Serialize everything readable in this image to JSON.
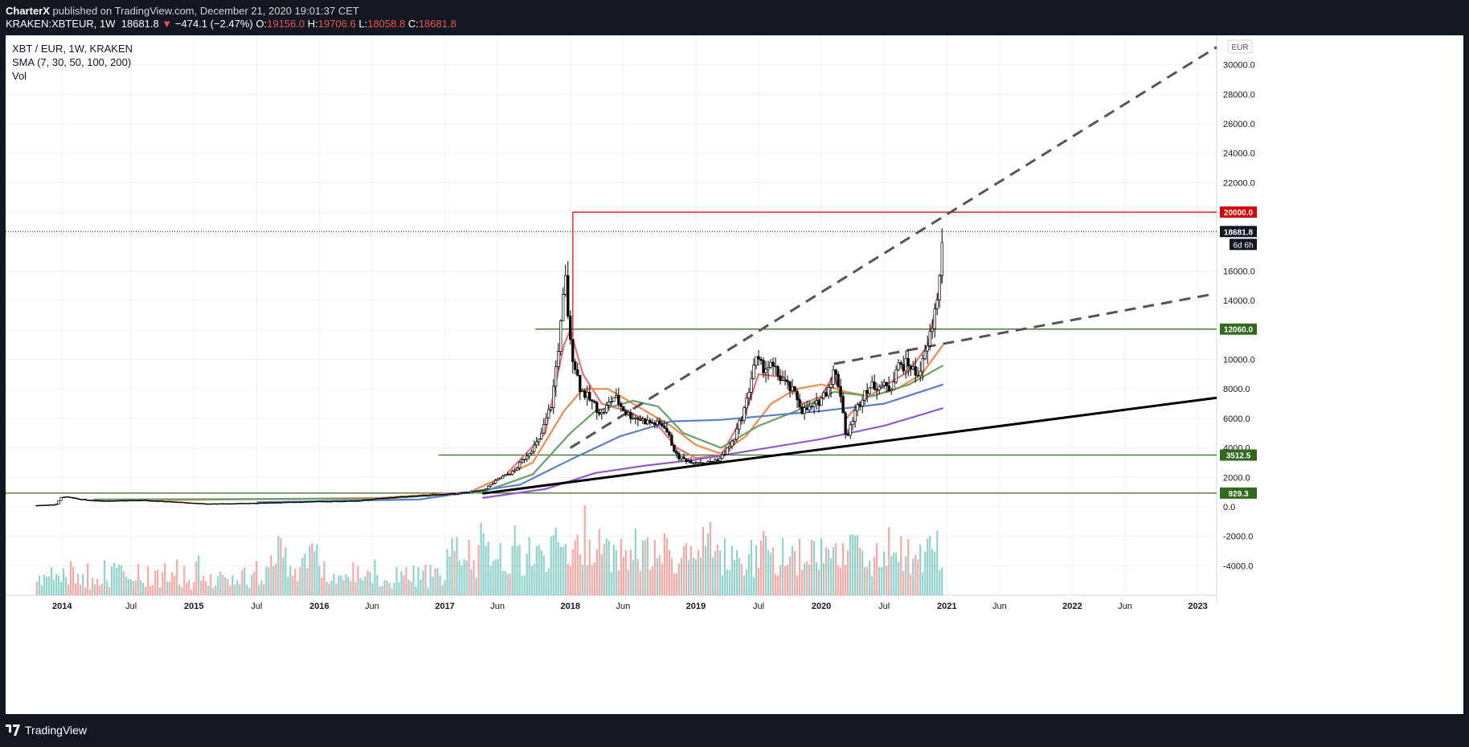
{
  "header": {
    "publisher": "CharterX",
    "published_text": " published on TradingView.com, December 21, 2020 19:01:37 CET",
    "symbol": "KRAKEN:XBTEUR, 1W",
    "last": "18681.8",
    "change": "−474.1 (−2.47%)",
    "o_label": "O:",
    "o_value": "19156.0",
    "h_label": "H:",
    "h_value": "19706.6",
    "l_label": "L:",
    "l_value": "18058.8",
    "c_label": "C:",
    "c_value": "18681.8"
  },
  "legend": {
    "pair": "XBT / EUR, 1W, KRAKEN",
    "sma": "SMA (7, 30, 50, 100, 200)",
    "vol": "Vol"
  },
  "footer": {
    "brand": "TradingView"
  },
  "colors": {
    "bull": "#26a69a",
    "bear": "#ef5350",
    "sma7": "#e57373",
    "sma30": "#f08a4b",
    "sma50": "#6a9f6a",
    "sma100": "#5b7fc7",
    "sma200": "#8e5cc7",
    "resistance": "#d50000",
    "support": "#33691e",
    "trend": "#000000",
    "dashed": "#555555"
  },
  "chart_data": {
    "type": "candlestick",
    "title": "XBT / EUR, 1W, KRAKEN",
    "currency": "EUR",
    "y_axis": {
      "range": [
        -6000,
        32000
      ],
      "ticks": [
        30000,
        28000,
        26000,
        24000,
        22000,
        20000,
        16000,
        14000,
        12000,
        10000,
        8000,
        6000,
        4000,
        2000,
        0,
        -2000,
        -4000
      ]
    },
    "x_axis": {
      "range": [
        2013.5,
        2023.15
      ],
      "ticks": [
        {
          "label": "2014",
          "x": 2013.95
        },
        {
          "label": "Jul",
          "x": 2014.5
        },
        {
          "label": "2015",
          "x": 2015.0
        },
        {
          "label": "Jul",
          "x": 2015.5
        },
        {
          "label": "2016",
          "x": 2016.0
        },
        {
          "label": "Jun",
          "x": 2016.42
        },
        {
          "label": "2017",
          "x": 2017.0
        },
        {
          "label": "Jun",
          "x": 2017.42
        },
        {
          "label": "2018",
          "x": 2018.0
        },
        {
          "label": "Jun",
          "x": 2018.42
        },
        {
          "label": "2019",
          "x": 2019.0
        },
        {
          "label": "Jul",
          "x": 2019.5
        },
        {
          "label": "2020",
          "x": 2020.0
        },
        {
          "label": "Jul",
          "x": 2020.5
        },
        {
          "label": "2021",
          "x": 2021.0
        },
        {
          "label": "Jun",
          "x": 2021.42
        },
        {
          "label": "2022",
          "x": 2022.0
        },
        {
          "label": "Jun",
          "x": 2022.42
        },
        {
          "label": "2023",
          "x": 2023.0
        }
      ]
    },
    "price_path": [
      [
        2013.75,
        100
      ],
      [
        2013.9,
        150
      ],
      [
        2013.95,
        700
      ],
      [
        2014.1,
        500
      ],
      [
        2014.3,
        400
      ],
      [
        2014.6,
        450
      ],
      [
        2014.9,
        300
      ],
      [
        2015.1,
        200
      ],
      [
        2015.5,
        250
      ],
      [
        2015.9,
        350
      ],
      [
        2016.3,
        400
      ],
      [
        2016.5,
        600
      ],
      [
        2016.9,
        800
      ],
      [
        2017.1,
        900
      ],
      [
        2017.3,
        1100
      ],
      [
        2017.45,
        2000
      ],
      [
        2017.55,
        2400
      ],
      [
        2017.65,
        3500
      ],
      [
        2017.75,
        4500
      ],
      [
        2017.85,
        7000
      ],
      [
        2017.92,
        12000
      ],
      [
        2017.96,
        15500
      ],
      [
        2018.0,
        11000
      ],
      [
        2018.08,
        8000
      ],
      [
        2018.18,
        7000
      ],
      [
        2018.25,
        6300
      ],
      [
        2018.35,
        7500
      ],
      [
        2018.45,
        6300
      ],
      [
        2018.6,
        5800
      ],
      [
        2018.75,
        5500
      ],
      [
        2018.85,
        3400
      ],
      [
        2018.95,
        3100
      ],
      [
        2019.1,
        3000
      ],
      [
        2019.2,
        3300
      ],
      [
        2019.3,
        4500
      ],
      [
        2019.4,
        7000
      ],
      [
        2019.47,
        10000
      ],
      [
        2019.52,
        9500
      ],
      [
        2019.6,
        9500
      ],
      [
        2019.7,
        8500
      ],
      [
        2019.8,
        7500
      ],
      [
        2019.85,
        6500
      ],
      [
        2019.95,
        6800
      ],
      [
        2020.05,
        8000
      ],
      [
        2020.1,
        9200
      ],
      [
        2020.15,
        8000
      ],
      [
        2020.2,
        4500
      ],
      [
        2020.25,
        6000
      ],
      [
        2020.35,
        8000
      ],
      [
        2020.45,
        8300
      ],
      [
        2020.55,
        8000
      ],
      [
        2020.6,
        9500
      ],
      [
        2020.7,
        9700
      ],
      [
        2020.75,
        9000
      ],
      [
        2020.8,
        9500
      ],
      [
        2020.85,
        11000
      ],
      [
        2020.9,
        13000
      ],
      [
        2020.95,
        16000
      ],
      [
        2020.97,
        18681.8
      ]
    ],
    "sma": [
      {
        "name": "SMA 7",
        "color": "#e57373",
        "points": [
          [
            2017.5,
            2300
          ],
          [
            2017.8,
            5000
          ],
          [
            2017.95,
            11000
          ],
          [
            2018.0,
            12000
          ],
          [
            2018.1,
            9000
          ],
          [
            2018.25,
            7000
          ],
          [
            2018.45,
            6500
          ],
          [
            2018.7,
            5500
          ],
          [
            2018.85,
            4000
          ],
          [
            2019.0,
            3300
          ],
          [
            2019.2,
            3500
          ],
          [
            2019.4,
            6500
          ],
          [
            2019.5,
            9000
          ],
          [
            2019.7,
            8800
          ],
          [
            2019.85,
            7000
          ],
          [
            2020.0,
            7500
          ],
          [
            2020.1,
            9000
          ],
          [
            2020.2,
            6000
          ],
          [
            2020.3,
            7000
          ],
          [
            2020.5,
            8200
          ],
          [
            2020.7,
            9200
          ],
          [
            2020.85,
            11000
          ],
          [
            2020.97,
            16000
          ]
        ]
      },
      {
        "name": "SMA 30",
        "color": "#f08a4b",
        "points": [
          [
            2014.2,
            400
          ],
          [
            2016.5,
            600
          ],
          [
            2017.2,
            1000
          ],
          [
            2017.7,
            3000
          ],
          [
            2017.95,
            6500
          ],
          [
            2018.1,
            8000
          ],
          [
            2018.3,
            8000
          ],
          [
            2018.5,
            7000
          ],
          [
            2018.8,
            5500
          ],
          [
            2019.0,
            4200
          ],
          [
            2019.2,
            3600
          ],
          [
            2019.4,
            4800
          ],
          [
            2019.6,
            7000
          ],
          [
            2019.8,
            8000
          ],
          [
            2020.0,
            8300
          ],
          [
            2020.2,
            7800
          ],
          [
            2020.4,
            7500
          ],
          [
            2020.6,
            8000
          ],
          [
            2020.8,
            9000
          ],
          [
            2020.97,
            11000
          ]
        ]
      },
      {
        "name": "SMA 50",
        "color": "#6a9f6a",
        "points": [
          [
            2014.2,
            500
          ],
          [
            2016.5,
            550
          ],
          [
            2017.3,
            1000
          ],
          [
            2017.7,
            2200
          ],
          [
            2018.0,
            5000
          ],
          [
            2018.2,
            6500
          ],
          [
            2018.5,
            7200
          ],
          [
            2018.7,
            6800
          ],
          [
            2018.9,
            5000
          ],
          [
            2019.2,
            4000
          ],
          [
            2019.5,
            5500
          ],
          [
            2019.8,
            6500
          ],
          [
            2020.1,
            7800
          ],
          [
            2020.4,
            7500
          ],
          [
            2020.7,
            8300
          ],
          [
            2020.97,
            9600
          ]
        ]
      },
      {
        "name": "SMA 100",
        "color": "#5b7fc7",
        "points": [
          [
            2015.5,
            300
          ],
          [
            2016.8,
            500
          ],
          [
            2017.6,
            1500
          ],
          [
            2018.0,
            3200
          ],
          [
            2018.4,
            4800
          ],
          [
            2018.8,
            5800
          ],
          [
            2019.2,
            5900
          ],
          [
            2019.6,
            6200
          ],
          [
            2020.0,
            6500
          ],
          [
            2020.5,
            7000
          ],
          [
            2020.97,
            8300
          ]
        ]
      },
      {
        "name": "SMA 200",
        "color": "#8e5cc7",
        "points": [
          [
            2017.3,
            600
          ],
          [
            2017.8,
            1200
          ],
          [
            2018.2,
            2300
          ],
          [
            2018.6,
            2800
          ],
          [
            2019.0,
            3200
          ],
          [
            2019.5,
            3900
          ],
          [
            2020.0,
            4600
          ],
          [
            2020.5,
            5500
          ],
          [
            2020.97,
            6700
          ]
        ]
      }
    ],
    "horizontal_levels": [
      {
        "label": "20000.0",
        "value": 20000,
        "color": "#d50000",
        "from": 2018.02
      },
      {
        "label": "12060.0",
        "value": 12060,
        "color": "#33691e",
        "from": 2017.72
      },
      {
        "label": "3512.5",
        "value": 3512.5,
        "color": "#33691e",
        "from": 2016.95
      },
      {
        "label": "929.3",
        "value": 929.3,
        "color": "#33691e",
        "from": 2013.5
      }
    ],
    "current_price": {
      "label": "18681.8",
      "value": 18681.8,
      "countdown": "6d 6h"
    },
    "trendlines": [
      {
        "style": "solid",
        "from": [
          2017.3,
          900
        ],
        "to": [
          2023.15,
          7400
        ]
      },
      {
        "style": "dashed",
        "from": [
          2018.0,
          4000
        ],
        "to": [
          2023.15,
          31200
        ]
      },
      {
        "style": "dashed",
        "from": [
          2020.1,
          9700
        ],
        "to": [
          2023.1,
          14400
        ]
      }
    ]
  }
}
